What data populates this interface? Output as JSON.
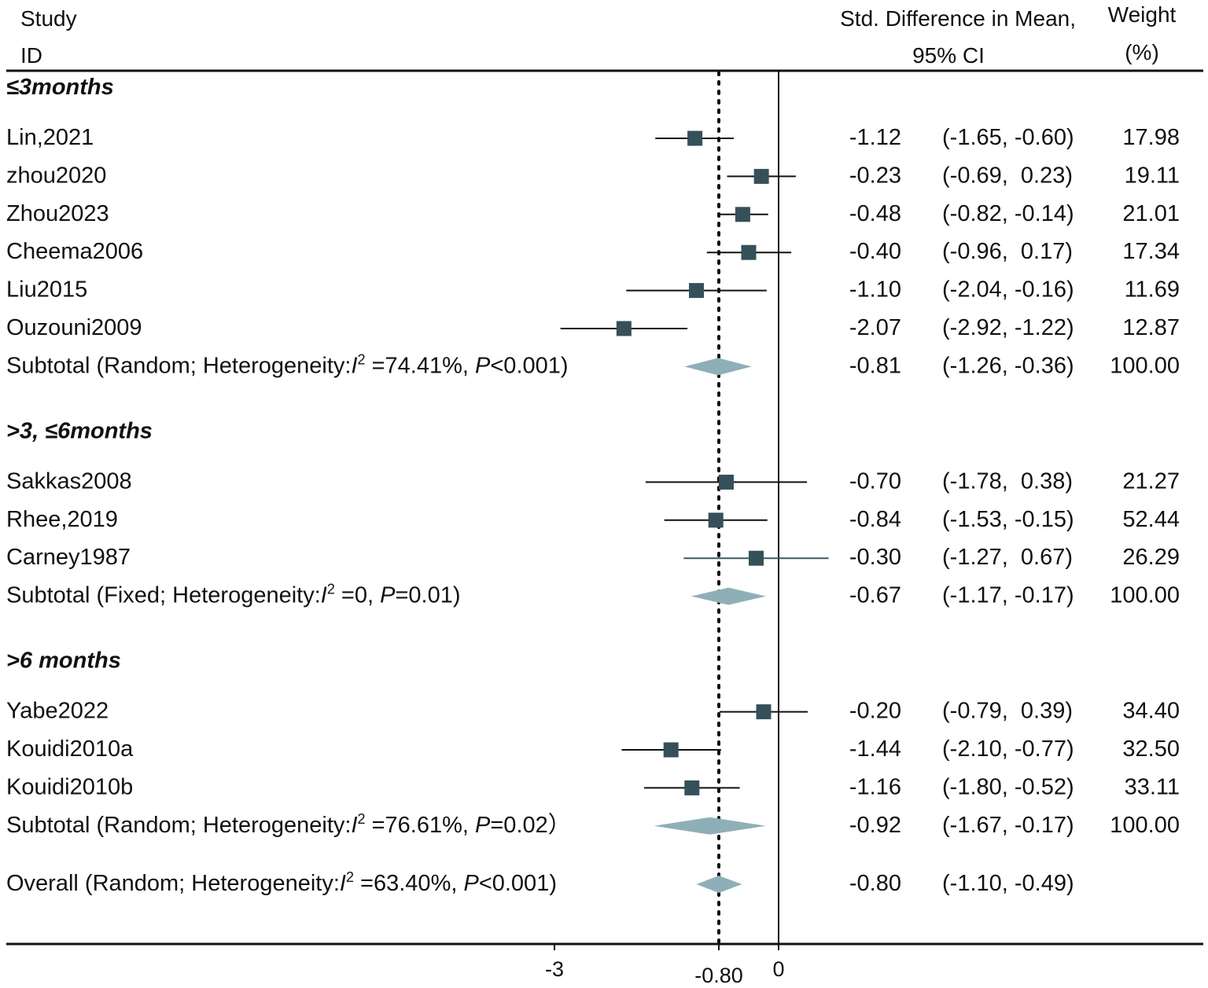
{
  "chart_data": {
    "type": "forest",
    "header": {
      "study_line1": "Study",
      "study_line2": "ID",
      "effect_line1": "Std. Difference in Mean,",
      "effect_line2": "95% CI",
      "weight_line1": "Weight",
      "weight_line2": "(%)"
    },
    "xlim": [
      -3.0,
      0.6
    ],
    "ticks": [
      {
        "value": -3,
        "label": "-3"
      },
      {
        "value": -0.8,
        "label": "-0.80"
      },
      {
        "value": 0,
        "label": "0"
      }
    ],
    "overall_reference": -0.8,
    "colors": {
      "marker": "#36505A",
      "diamond": "#8FAFB8",
      "ci_line": "#111111",
      "ci_line_alt": "#3E5A64",
      "axis": "#111111"
    },
    "groups": [
      {
        "label": "≤3months",
        "studies": [
          {
            "id": "Lin,2021",
            "est": -1.12,
            "lo": -1.65,
            "hi": -0.6,
            "est_text": "-1.12",
            "ci_text": "(-1.65, -0.60)",
            "weight_text": "17.98"
          },
          {
            "id": "zhou2020",
            "est": -0.23,
            "lo": -0.69,
            "hi": 0.23,
            "est_text": "-0.23",
            "ci_text": "(-0.69,  0.23)",
            "weight_text": "19.11"
          },
          {
            "id": "Zhou2023",
            "est": -0.48,
            "lo": -0.82,
            "hi": -0.14,
            "est_text": "-0.48",
            "ci_text": "(-0.82, -0.14)",
            "weight_text": "21.01"
          },
          {
            "id": "Cheema2006",
            "est": -0.4,
            "lo": -0.96,
            "hi": 0.17,
            "est_text": "-0.40",
            "ci_text": "(-0.96,  0.17)",
            "weight_text": "17.34"
          },
          {
            "id": "Liu2015",
            "est": -1.1,
            "lo": -2.04,
            "hi": -0.16,
            "est_text": "-1.10",
            "ci_text": "(-2.04, -0.16)",
            "weight_text": "11.69"
          },
          {
            "id": "Ouzouni2009",
            "est": -2.07,
            "lo": -2.92,
            "hi": -1.22,
            "est_text": "-2.07",
            "ci_text": "(-2.92, -1.22)",
            "weight_text": "12.87"
          }
        ],
        "subtotal": {
          "label_pre": "Subtotal (Random; Heterogeneity:",
          "i_symbol": "I",
          "sup": "2",
          "label_mid": " =74.41%, ",
          "p_symbol": "P",
          "label_post": "<0.001)",
          "est": -0.81,
          "lo": -1.26,
          "hi": -0.36,
          "est_text": "-0.81",
          "ci_text": "(-1.26, -0.36)",
          "weight_text": "100.00"
        }
      },
      {
        "label": ">3, ≤6months",
        "studies": [
          {
            "id": "Sakkas2008",
            "est": -0.7,
            "lo": -1.78,
            "hi": 0.38,
            "est_text": "-0.70",
            "ci_text": "(-1.78,  0.38)",
            "weight_text": "21.27"
          },
          {
            "id": "Rhee,2019",
            "est": -0.84,
            "lo": -1.53,
            "hi": -0.15,
            "est_text": "-0.84",
            "ci_text": "(-1.53, -0.15)",
            "weight_text": "52.44"
          },
          {
            "id": "Carney1987",
            "est": -0.3,
            "lo": -1.27,
            "hi": 0.67,
            "est_text": "-0.30",
            "ci_text": "(-1.27,  0.67)",
            "weight_text": "26.29",
            "alt_line": true
          }
        ],
        "subtotal": {
          "label_pre": "Subtotal (Fixed; Heterogeneity:",
          "i_symbol": "I",
          "sup": "2",
          "label_mid": " =0, ",
          "p_symbol": "P",
          "label_post": "=0.01)",
          "est": -0.67,
          "lo": -1.17,
          "hi": -0.17,
          "est_text": "-0.67",
          "ci_text": "(-1.17, -0.17)",
          "weight_text": "100.00"
        }
      },
      {
        "label": ">6 months",
        "studies": [
          {
            "id": "Yabe2022",
            "est": -0.2,
            "lo": -0.79,
            "hi": 0.39,
            "est_text": "-0.20",
            "ci_text": "(-0.79,  0.39)",
            "weight_text": "34.40"
          },
          {
            "id": "Kouidi2010a",
            "est": -1.44,
            "lo": -2.1,
            "hi": -0.77,
            "est_text": "-1.44",
            "ci_text": "(-2.10, -0.77)",
            "weight_text": "32.50"
          },
          {
            "id": "Kouidi2010b",
            "est": -1.16,
            "lo": -1.8,
            "hi": -0.52,
            "est_text": "-1.16",
            "ci_text": "(-1.80, -0.52)",
            "weight_text": "33.11"
          }
        ],
        "subtotal": {
          "label_pre": "Subtotal (Random; Heterogeneity:",
          "i_symbol": "I",
          "sup": "2",
          "label_mid": " =76.61%, ",
          "p_symbol": "P",
          "label_post": "=0.02）",
          "est": -0.92,
          "lo": -1.67,
          "hi": -0.17,
          "est_text": "-0.92",
          "ci_text": "(-1.67, -0.17)",
          "weight_text": "100.00"
        }
      }
    ],
    "overall": {
      "label_pre": "Overall (Random; Heterogeneity:",
      "i_symbol": "I",
      "sup": "2",
      "label_mid": " =63.40%, ",
      "p_symbol": "P",
      "label_post": "<0.001)",
      "est": -0.8,
      "lo": -1.1,
      "hi": -0.49,
      "est_text": "-0.80",
      "ci_text": "(-1.10, -0.49)",
      "weight_text": ""
    }
  }
}
